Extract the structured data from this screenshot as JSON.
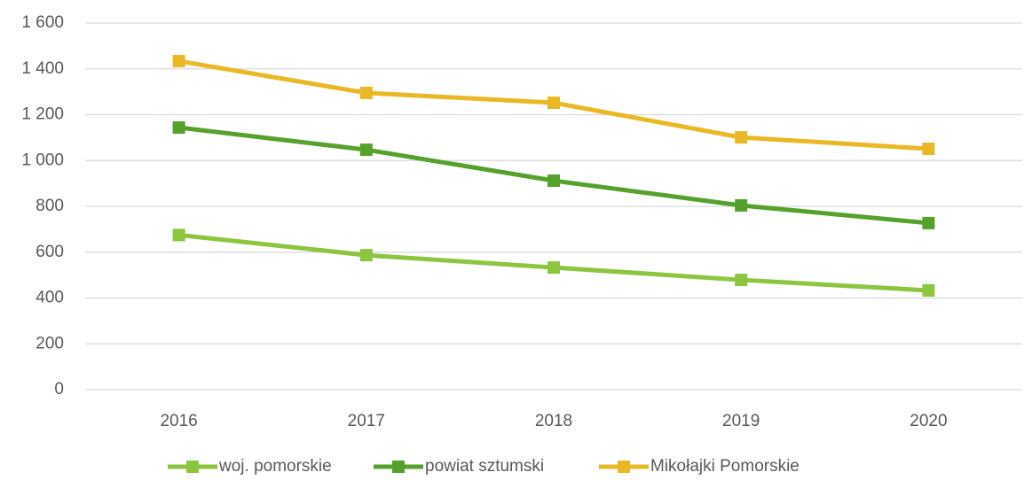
{
  "chart_data": {
    "type": "line",
    "categories": [
      "2016",
      "2017",
      "2018",
      "2019",
      "2020"
    ],
    "series": [
      {
        "name": "woj. pomorskie",
        "color": "#8cc63e",
        "values": [
          675,
          587,
          533,
          479,
          433
        ]
      },
      {
        "name": "powiat sztumski",
        "color": "#54a22b",
        "values": [
          1144,
          1047,
          912,
          804,
          727
        ]
      },
      {
        "name": "Mikołajki Pomorskie",
        "color": "#e9b824",
        "values": [
          1434,
          1295,
          1252,
          1101,
          1051
        ]
      }
    ],
    "ylim": [
      0,
      1600
    ],
    "yticks": [
      0,
      200,
      400,
      600,
      800,
      {
        "value": 1000,
        "label": "1 000"
      },
      {
        "value": 1200,
        "label": "1 200"
      },
      {
        "value": 1400,
        "label": "1 400"
      },
      {
        "value": 1600,
        "label": "1 600"
      }
    ],
    "grid": true,
    "legend": "bottom"
  }
}
